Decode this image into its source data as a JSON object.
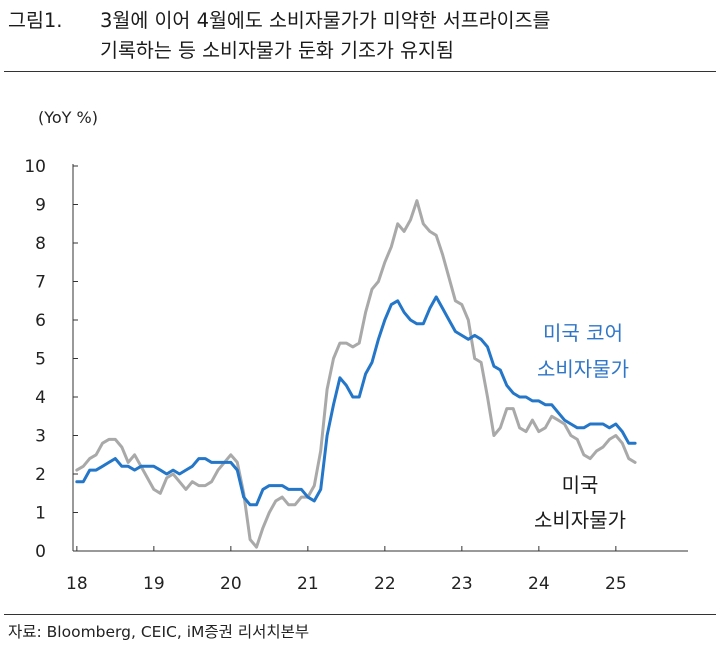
{
  "title": {
    "number": "그림1.",
    "line1": "3월에 이어 4월에도 소비자물가가 미약한 서프라이즈를",
    "line2": "기록하는 등 소비자물가 둔화 기조가 유지됨"
  },
  "source": "자료: Bloomberg, CEIC, iM증권 리서치본부",
  "colors": {
    "core": "#2476C8",
    "headline": "#A9A9A9",
    "axis": "#333333",
    "core_label": "#2F76C8"
  },
  "chart_data": {
    "type": "line",
    "ylabel": "(YoY %)",
    "ylim": [
      0,
      10
    ],
    "yticks": [
      "0",
      "1",
      "2",
      "3",
      "4",
      "5",
      "6",
      "7",
      "8",
      "9",
      "10"
    ],
    "xticks": [
      "18",
      "19",
      "20",
      "21",
      "22",
      "23",
      "24",
      "25"
    ],
    "grid": false,
    "series": [
      {
        "name_lines": [
          "미국 코어",
          "소비자물가"
        ],
        "x_start": "2018-01",
        "values": [
          1.8,
          1.8,
          2.1,
          2.1,
          2.2,
          2.3,
          2.4,
          2.2,
          2.2,
          2.1,
          2.2,
          2.2,
          2.2,
          2.1,
          2.0,
          2.1,
          2.0,
          2.1,
          2.2,
          2.4,
          2.4,
          2.3,
          2.3,
          2.3,
          2.3,
          2.1,
          1.4,
          1.2,
          1.2,
          1.6,
          1.7,
          1.7,
          1.7,
          1.6,
          1.6,
          1.6,
          1.4,
          1.3,
          1.6,
          3.0,
          3.8,
          4.5,
          4.3,
          4.0,
          4.0,
          4.6,
          4.9,
          5.5,
          6.0,
          6.4,
          6.5,
          6.2,
          6.0,
          5.9,
          5.9,
          6.3,
          6.6,
          6.3,
          6.0,
          5.7,
          5.6,
          5.5,
          5.6,
          5.5,
          5.3,
          4.8,
          4.7,
          4.3,
          4.1,
          4.0,
          4.0,
          3.9,
          3.9,
          3.8,
          3.8,
          3.6,
          3.4,
          3.3,
          3.2,
          3.2,
          3.3,
          3.3,
          3.3,
          3.2,
          3.3,
          3.1,
          2.8,
          2.8
        ]
      },
      {
        "name_lines": [
          "미국",
          "소비자물가"
        ],
        "x_start": "2018-01",
        "values": [
          2.1,
          2.2,
          2.4,
          2.5,
          2.8,
          2.9,
          2.9,
          2.7,
          2.3,
          2.5,
          2.2,
          1.9,
          1.6,
          1.5,
          1.9,
          2.0,
          1.8,
          1.6,
          1.8,
          1.7,
          1.7,
          1.8,
          2.1,
          2.3,
          2.5,
          2.3,
          1.5,
          0.3,
          0.1,
          0.6,
          1.0,
          1.3,
          1.4,
          1.2,
          1.2,
          1.4,
          1.4,
          1.7,
          2.6,
          4.2,
          5.0,
          5.4,
          5.4,
          5.3,
          5.4,
          6.2,
          6.8,
          7.0,
          7.5,
          7.9,
          8.5,
          8.3,
          8.6,
          9.1,
          8.5,
          8.3,
          8.2,
          7.7,
          7.1,
          6.5,
          6.4,
          6.0,
          5.0,
          4.9,
          4.0,
          3.0,
          3.2,
          3.7,
          3.7,
          3.2,
          3.1,
          3.4,
          3.1,
          3.2,
          3.5,
          3.4,
          3.3,
          3.0,
          2.9,
          2.5,
          2.4,
          2.6,
          2.7,
          2.9,
          3.0,
          2.8,
          2.4,
          2.3
        ]
      }
    ]
  }
}
